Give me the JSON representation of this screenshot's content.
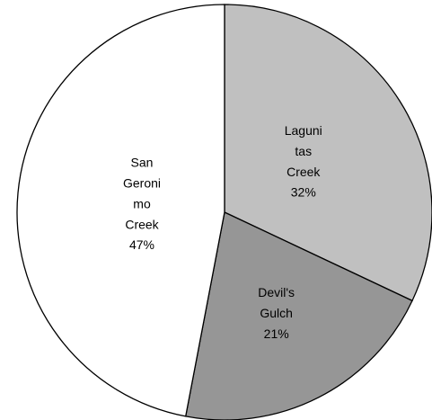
{
  "chart_data": {
    "type": "pie",
    "categories": [
      "Lagunitas Creek",
      "Devil's Gulch",
      "San Geronimo Creek"
    ],
    "values": [
      32,
      21,
      47
    ],
    "value_labels": [
      "32%",
      "21%",
      "47%"
    ],
    "colors": [
      "#c0c0c0",
      "#969696",
      "#ffffff"
    ]
  }
}
